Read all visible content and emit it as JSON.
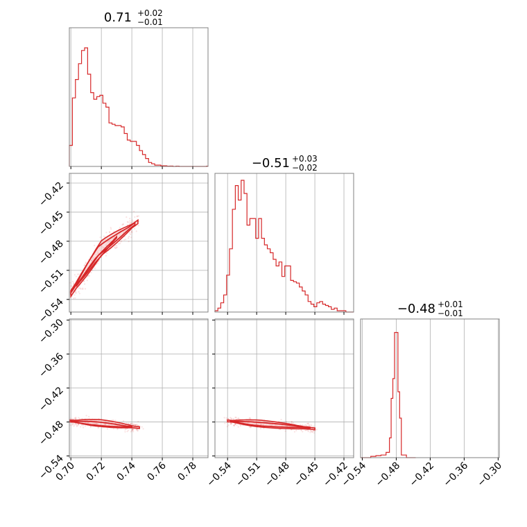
{
  "colors": {
    "accent": "#d62728",
    "grid": "#b0b0b0",
    "frame": "#808080",
    "fill": "#f7c6c7"
  },
  "chart_data": {
    "type": "corner",
    "grid": true,
    "titles": [
      {
        "main": "0.71",
        "sup": "+0.02",
        "sub": "−0.01"
      },
      {
        "main": "−0.51",
        "sup": "+0.03",
        "sub": "−0.02"
      },
      {
        "main": "−0.48",
        "sup": "+0.01",
        "sub": "−0.01"
      }
    ],
    "ranges": {
      "p1": [
        0.699,
        0.79
      ],
      "p2": [
        -0.553,
        -0.41
      ],
      "p3": [
        -0.543,
        -0.298
      ]
    },
    "ticks": {
      "p1": {
        "values": [
          0.7,
          0.72,
          0.74,
          0.76,
          0.78
        ],
        "labels": [
          "0.70",
          "0.72",
          "0.74",
          "0.76",
          "0.78"
        ]
      },
      "p2": {
        "values": [
          -0.54,
          -0.51,
          -0.48,
          -0.45,
          -0.42
        ],
        "labels": [
          "−0.54",
          "−0.51",
          "−0.48",
          "−0.45",
          "−0.42"
        ]
      },
      "p3": {
        "values": [
          -0.54,
          -0.48,
          -0.42,
          -0.36,
          -0.3
        ],
        "labels": [
          "−0.54",
          "−0.48",
          "−0.42",
          "−0.36",
          "−0.30"
        ]
      }
    },
    "hist_p1": [
      [
        0.699,
        0.16
      ],
      [
        0.701,
        0.52
      ],
      [
        0.703,
        0.66
      ],
      [
        0.705,
        0.78
      ],
      [
        0.707,
        0.88
      ],
      [
        0.709,
        0.9
      ],
      [
        0.711,
        0.7
      ],
      [
        0.713,
        0.56
      ],
      [
        0.715,
        0.51
      ],
      [
        0.717,
        0.53
      ],
      [
        0.719,
        0.54
      ],
      [
        0.721,
        0.48
      ],
      [
        0.723,
        0.45
      ],
      [
        0.725,
        0.33
      ],
      [
        0.727,
        0.32
      ],
      [
        0.729,
        0.31
      ],
      [
        0.731,
        0.31
      ],
      [
        0.733,
        0.3
      ],
      [
        0.735,
        0.25
      ],
      [
        0.737,
        0.2
      ],
      [
        0.739,
        0.19
      ],
      [
        0.741,
        0.19
      ],
      [
        0.743,
        0.16
      ],
      [
        0.745,
        0.12
      ],
      [
        0.747,
        0.09
      ],
      [
        0.749,
        0.06
      ],
      [
        0.751,
        0.03
      ],
      [
        0.753,
        0.02
      ],
      [
        0.755,
        0.01
      ],
      [
        0.757,
        0.01
      ],
      [
        0.759,
        0.005
      ],
      [
        0.761,
        0.005
      ],
      [
        0.763,
        0.002
      ],
      [
        0.765,
        0.003
      ],
      [
        0.767,
        0.0
      ],
      [
        0.769,
        0.002
      ],
      [
        0.771,
        0.0
      ],
      [
        0.773,
        0.0
      ],
      [
        0.775,
        0.0
      ],
      [
        0.777,
        0.0
      ],
      [
        0.779,
        0.0
      ],
      [
        0.781,
        0.0
      ],
      [
        0.783,
        0.0
      ],
      [
        0.785,
        0.0
      ],
      [
        0.787,
        0.0
      ],
      [
        0.789,
        0.002
      ]
    ],
    "hist_p2": [
      [
        -0.553,
        0.01
      ],
      [
        -0.55,
        0.03
      ],
      [
        -0.547,
        0.07
      ],
      [
        -0.544,
        0.13
      ],
      [
        -0.541,
        0.28
      ],
      [
        -0.538,
        0.48
      ],
      [
        -0.535,
        0.78
      ],
      [
        -0.532,
        0.96
      ],
      [
        -0.529,
        0.85
      ],
      [
        -0.526,
        1.0
      ],
      [
        -0.523,
        0.9
      ],
      [
        -0.52,
        0.66
      ],
      [
        -0.517,
        0.71
      ],
      [
        -0.514,
        0.71
      ],
      [
        -0.511,
        0.56
      ],
      [
        -0.508,
        0.71
      ],
      [
        -0.505,
        0.56
      ],
      [
        -0.502,
        0.51
      ],
      [
        -0.499,
        0.48
      ],
      [
        -0.496,
        0.45
      ],
      [
        -0.493,
        0.4
      ],
      [
        -0.49,
        0.35
      ],
      [
        -0.487,
        0.38
      ],
      [
        -0.484,
        0.27
      ],
      [
        -0.481,
        0.35
      ],
      [
        -0.478,
        0.35
      ],
      [
        -0.475,
        0.24
      ],
      [
        -0.472,
        0.23
      ],
      [
        -0.469,
        0.22
      ],
      [
        -0.466,
        0.19
      ],
      [
        -0.463,
        0.16
      ],
      [
        -0.46,
        0.13
      ],
      [
        -0.457,
        0.08
      ],
      [
        -0.454,
        0.06
      ],
      [
        -0.451,
        0.04
      ],
      [
        -0.448,
        0.07
      ],
      [
        -0.445,
        0.08
      ],
      [
        -0.442,
        0.06
      ],
      [
        -0.439,
        0.05
      ],
      [
        -0.436,
        0.04
      ],
      [
        -0.433,
        0.02
      ],
      [
        -0.43,
        0.03
      ],
      [
        -0.427,
        0.01
      ],
      [
        -0.424,
        0.01
      ],
      [
        -0.421,
        0.01
      ],
      [
        -0.418,
        0.0
      ],
      [
        -0.415,
        0.0
      ],
      [
        -0.412,
        0.0
      ]
    ],
    "hist_p3": [
      [
        -0.543,
        0.0
      ],
      [
        -0.534,
        0.0
      ],
      [
        -0.525,
        0.01
      ],
      [
        -0.516,
        0.015
      ],
      [
        -0.507,
        0.02
      ],
      [
        -0.498,
        0.04
      ],
      [
        -0.492,
        0.15
      ],
      [
        -0.489,
        0.45
      ],
      [
        -0.486,
        0.6
      ],
      [
        -0.483,
        0.95
      ],
      [
        -0.48,
        0.95
      ],
      [
        -0.477,
        0.5
      ],
      [
        -0.474,
        0.3
      ],
      [
        -0.471,
        0.02
      ],
      [
        -0.462,
        0.0
      ],
      [
        -0.453,
        0.0
      ]
    ],
    "contour_p2_vs_p1": [
      {
        "x": [
          0.7,
          0.72,
          0.744
        ],
        "y": [
          -0.535,
          -0.487,
          -0.46
        ],
        "half_width": 0.0075
      },
      {
        "x": [
          0.7,
          0.718,
          0.742
        ],
        "y": [
          -0.532,
          -0.49,
          -0.462
        ],
        "half_width": 0.0045
      },
      {
        "x": [
          0.704,
          0.716,
          0.73
        ],
        "y": [
          -0.525,
          -0.5,
          -0.476
        ],
        "half_width": 0.002
      }
    ],
    "contour_p3_vs_p1": [
      {
        "x": [
          0.699,
          0.72,
          0.745
        ],
        "y": [
          -0.478,
          -0.482,
          -0.49
        ],
        "half_width": 0.006
      },
      {
        "x": [
          0.7,
          0.718,
          0.74
        ],
        "y": [
          -0.479,
          -0.483,
          -0.489
        ],
        "half_width": 0.003
      }
    ],
    "contour_p3_vs_p2": [
      {
        "x": [
          -0.54,
          -0.505,
          -0.45
        ],
        "y": [
          -0.478,
          -0.483,
          -0.492
        ],
        "half_width": 0.006
      },
      {
        "x": [
          -0.537,
          -0.505,
          -0.455
        ],
        "y": [
          -0.479,
          -0.484,
          -0.49
        ],
        "half_width": 0.003
      }
    ]
  }
}
